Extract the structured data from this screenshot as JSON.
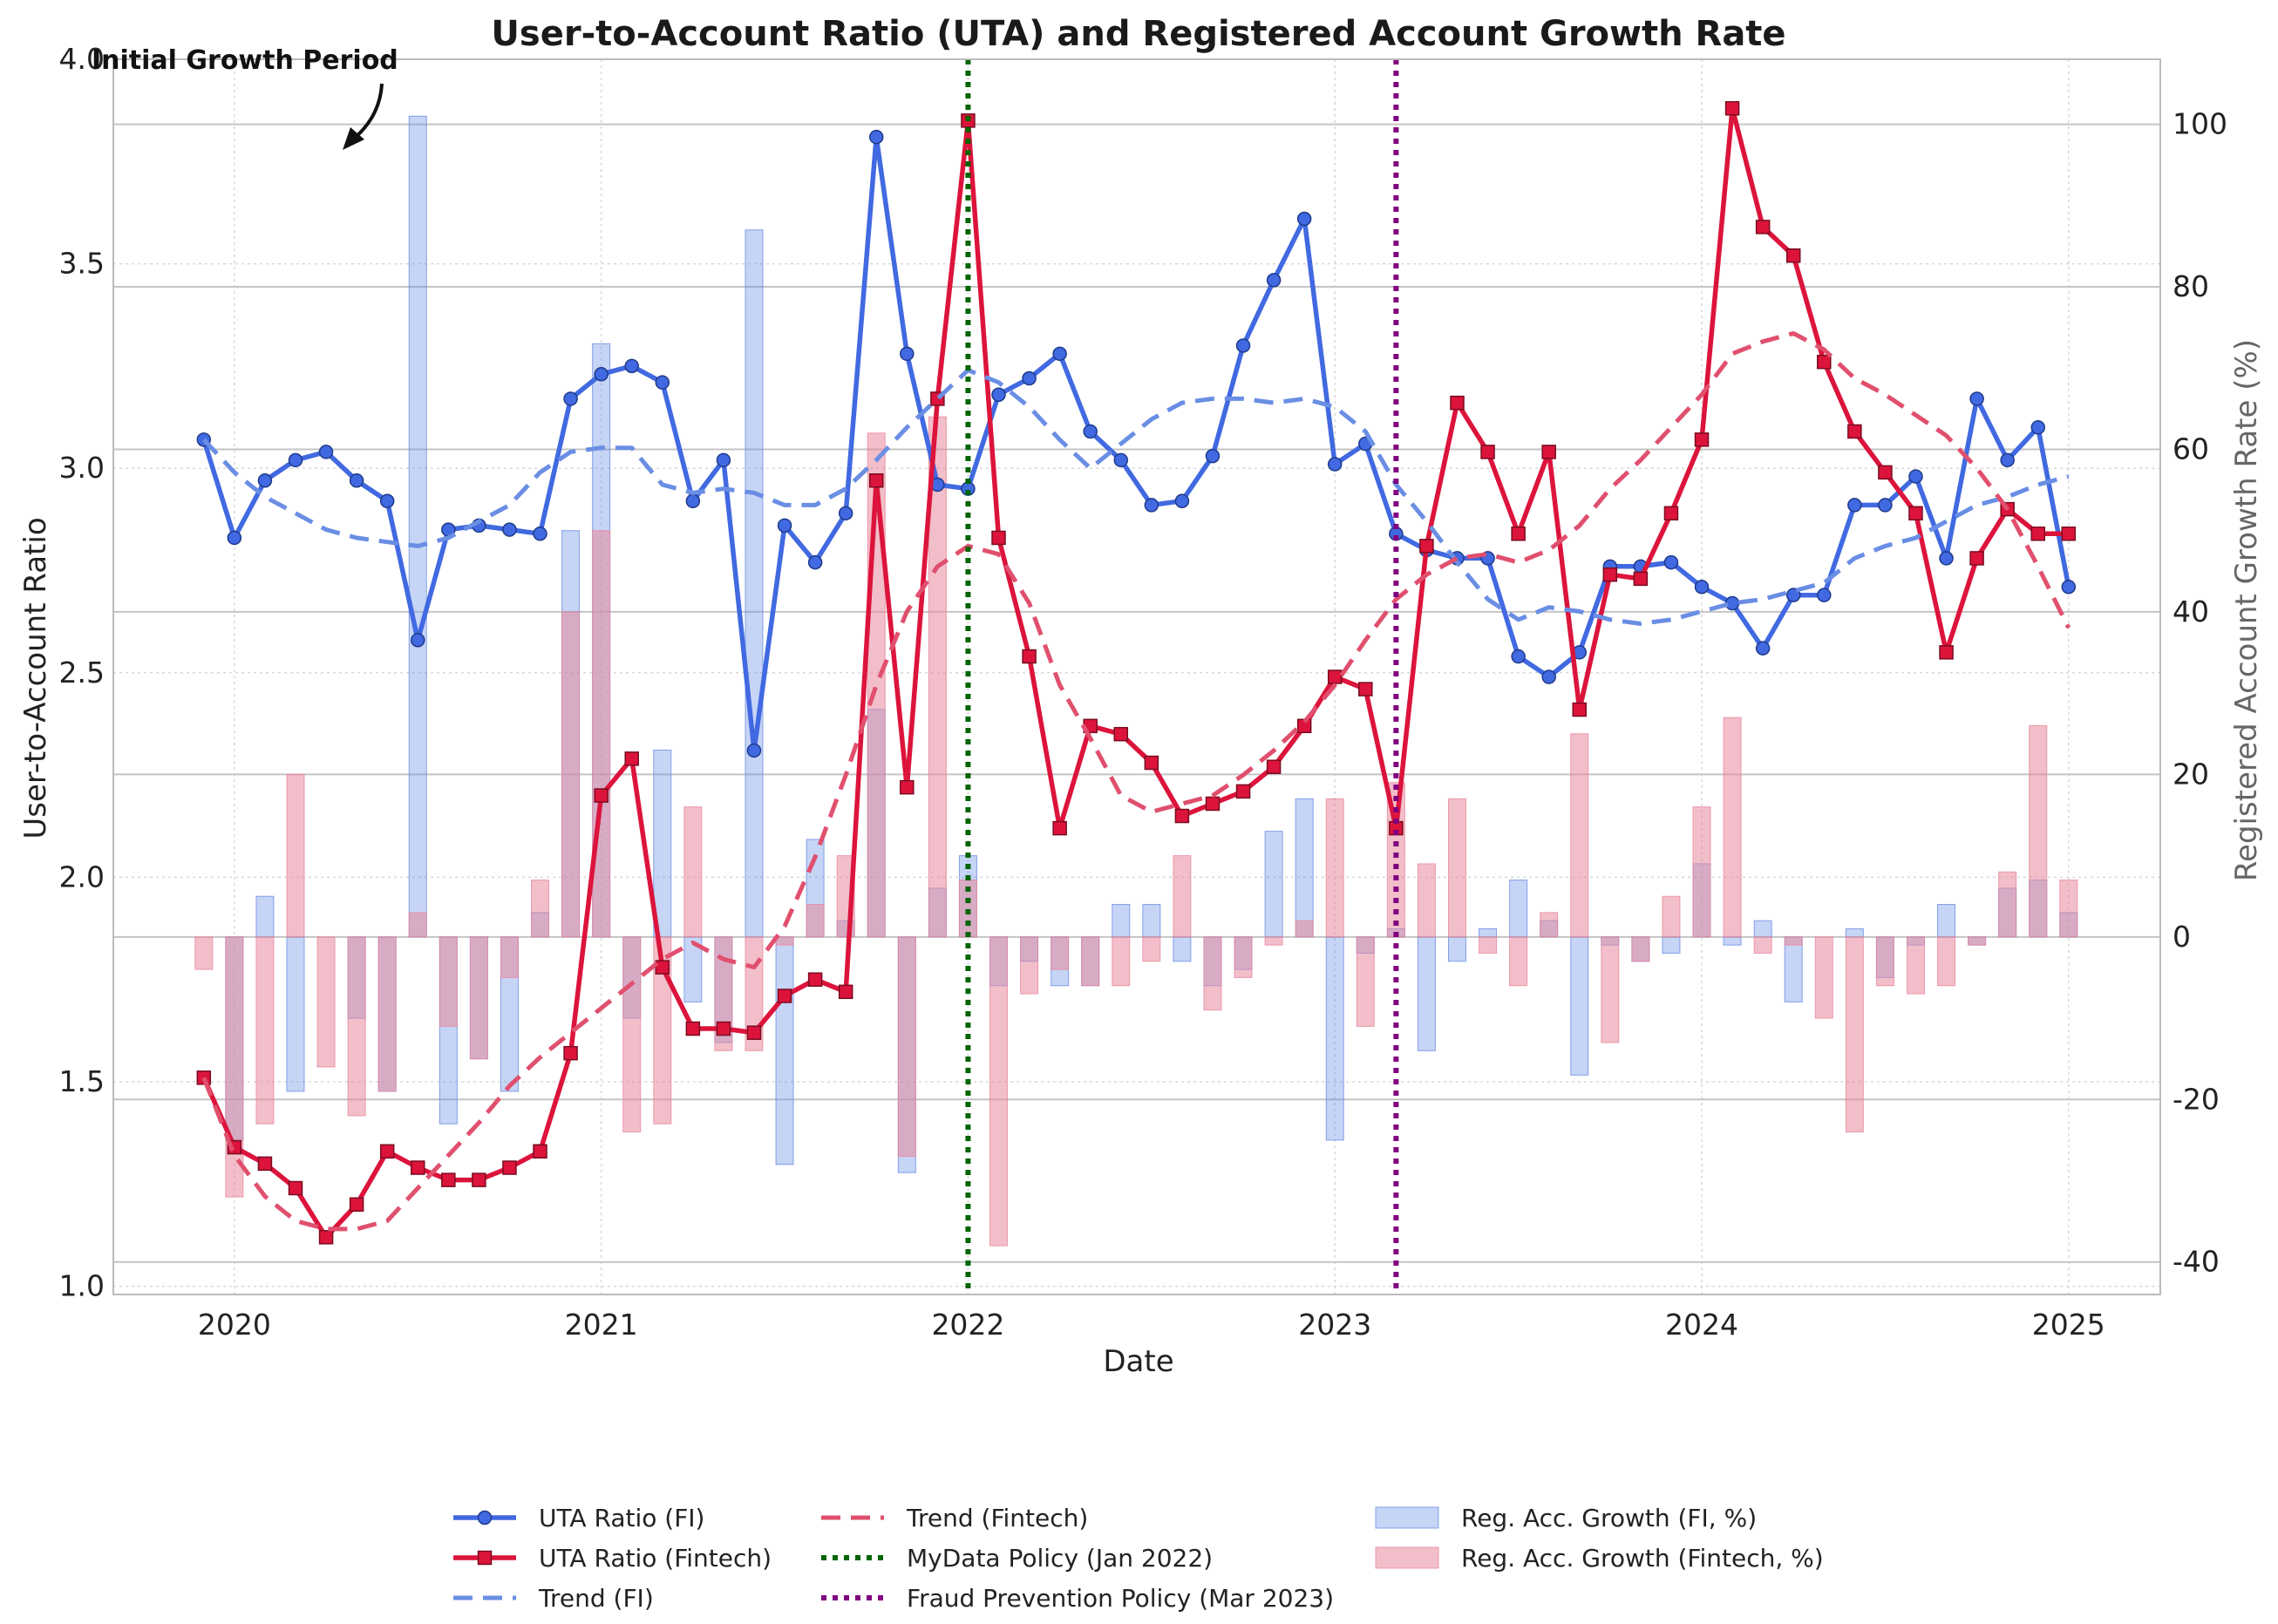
{
  "chart_data": {
    "type": "line",
    "title": "User-to-Account Ratio (UTA) and Registered Account Growth Rate",
    "xlabel": "Date",
    "ylabel": "User-to-Account Ratio",
    "y2label": "Registered Account Growth Rate (%)",
    "xlim": [
      2019.67,
      2025.25
    ],
    "ylim": [
      0.98,
      4.0
    ],
    "y2lim": [
      -44,
      108
    ],
    "x_ticks": [
      "2020",
      "2021",
      "2022",
      "2023",
      "2024",
      "2025"
    ],
    "y_ticks": [
      "1.0",
      "1.5",
      "2.0",
      "2.5",
      "3.0",
      "3.5",
      "4.0"
    ],
    "y2_ticks": [
      "-40",
      "-20",
      "0",
      "20",
      "40",
      "60",
      "80",
      "100"
    ],
    "months": [
      "2019-12",
      "2020-01",
      "2020-02",
      "2020-03",
      "2020-04",
      "2020-05",
      "2020-06",
      "2020-07",
      "2020-08",
      "2020-09",
      "2020-10",
      "2020-11",
      "2020-12",
      "2021-01",
      "2021-02",
      "2021-03",
      "2021-04",
      "2021-05",
      "2021-06",
      "2021-07",
      "2021-08",
      "2021-09",
      "2021-10",
      "2021-11",
      "2021-12",
      "2022-01",
      "2022-02",
      "2022-03",
      "2022-04",
      "2022-05",
      "2022-06",
      "2022-07",
      "2022-08",
      "2022-09",
      "2022-10",
      "2022-11",
      "2022-12",
      "2023-01",
      "2023-02",
      "2023-03",
      "2023-04",
      "2023-05",
      "2023-06",
      "2023-07",
      "2023-08",
      "2023-09",
      "2023-10",
      "2023-11",
      "2023-12",
      "2024-01",
      "2024-02",
      "2024-03",
      "2024-04",
      "2024-05",
      "2024-06",
      "2024-07",
      "2024-08",
      "2024-09",
      "2024-10",
      "2024-11",
      "2024-12",
      "2025-01"
    ],
    "series": [
      {
        "name": "UTA Ratio (FI)",
        "axis": "left",
        "style": "solid-circle",
        "color": "#4169e1",
        "values": [
          3.07,
          2.83,
          2.97,
          3.02,
          3.04,
          2.97,
          2.92,
          2.58,
          2.85,
          2.86,
          2.85,
          2.84,
          3.17,
          3.23,
          3.25,
          3.21,
          2.92,
          3.02,
          2.31,
          2.86,
          2.77,
          2.89,
          3.81,
          3.28,
          2.96,
          2.95,
          3.18,
          3.22,
          3.28,
          3.09,
          3.02,
          2.91,
          2.92,
          3.03,
          3.3,
          3.46,
          3.61,
          3.01,
          3.06,
          2.84,
          2.8,
          2.78,
          2.78,
          2.54,
          2.49,
          2.55,
          2.76,
          2.76,
          2.77,
          2.71,
          2.67,
          2.56,
          2.69,
          2.69,
          2.91,
          2.91,
          2.98,
          2.78,
          3.17,
          3.02,
          3.1,
          2.71
        ]
      },
      {
        "name": "UTA Ratio (Fintech)",
        "axis": "left",
        "style": "solid-square",
        "color": "#dc143c",
        "values": [
          1.51,
          1.34,
          1.3,
          1.24,
          1.12,
          1.2,
          1.33,
          1.29,
          1.26,
          1.26,
          1.29,
          1.33,
          1.57,
          2.2,
          2.29,
          1.78,
          1.63,
          1.63,
          1.62,
          1.71,
          1.75,
          1.72,
          2.97,
          2.22,
          3.17,
          3.85,
          2.83,
          2.54,
          2.12,
          2.37,
          2.35,
          2.28,
          2.15,
          2.18,
          2.21,
          2.27,
          2.37,
          2.49,
          2.46,
          2.12,
          2.81,
          3.16,
          3.04,
          2.84,
          3.04,
          2.41,
          2.74,
          2.73,
          2.89,
          3.07,
          3.88,
          3.59,
          3.52,
          3.26,
          3.09,
          2.99,
          2.89,
          2.55,
          2.78,
          2.9,
          2.84,
          2.84
        ]
      },
      {
        "name": "Trend (FI)",
        "axis": "left",
        "style": "dashed",
        "color": "#6a8ee4",
        "values": [
          3.07,
          2.99,
          2.93,
          2.89,
          2.85,
          2.83,
          2.82,
          2.81,
          2.83,
          2.87,
          2.91,
          2.99,
          3.04,
          3.05,
          3.05,
          2.96,
          2.94,
          2.95,
          2.94,
          2.91,
          2.91,
          2.95,
          3.02,
          3.1,
          3.17,
          3.24,
          3.21,
          3.15,
          3.07,
          3.0,
          3.06,
          3.12,
          3.16,
          3.17,
          3.17,
          3.16,
          3.17,
          3.15,
          3.09,
          2.96,
          2.87,
          2.77,
          2.68,
          2.63,
          2.66,
          2.65,
          2.63,
          2.62,
          2.63,
          2.65,
          2.67,
          2.68,
          2.7,
          2.72,
          2.78,
          2.81,
          2.83,
          2.87,
          2.91,
          2.93,
          2.96,
          2.98
        ]
      },
      {
        "name": "Trend (Fintech)",
        "axis": "left",
        "style": "dashed",
        "color": "#e0506e",
        "values": [
          1.51,
          1.32,
          1.22,
          1.16,
          1.14,
          1.14,
          1.16,
          1.24,
          1.32,
          1.4,
          1.49,
          1.56,
          1.62,
          1.68,
          1.74,
          1.8,
          1.84,
          1.8,
          1.78,
          1.88,
          2.05,
          2.25,
          2.47,
          2.65,
          2.76,
          2.81,
          2.79,
          2.67,
          2.47,
          2.34,
          2.2,
          2.16,
          2.18,
          2.2,
          2.25,
          2.31,
          2.38,
          2.47,
          2.58,
          2.68,
          2.74,
          2.78,
          2.79,
          2.77,
          2.8,
          2.86,
          2.95,
          3.02,
          3.1,
          3.18,
          3.28,
          3.31,
          3.33,
          3.29,
          3.22,
          3.18,
          3.13,
          3.08,
          3.0,
          2.9,
          2.76,
          2.61
        ]
      },
      {
        "name": "Reg. Acc. Growth (FI, %)",
        "axis": "right",
        "style": "bar",
        "color": "#6a8ee4",
        "values": [
          0,
          -25,
          5,
          -19,
          0,
          -10,
          -19,
          101,
          -23,
          -15,
          -19,
          3,
          50,
          73,
          -10,
          23,
          -8,
          -13,
          87,
          -28,
          12,
          2,
          28,
          -29,
          6,
          10,
          -6,
          -3,
          -6,
          -6,
          4,
          4,
          -3,
          -6,
          -4,
          13,
          17,
          -25,
          -2,
          1,
          -14,
          -3,
          1,
          7,
          2,
          -17,
          -1,
          -3,
          -2,
          9,
          -1,
          2,
          -8,
          0,
          1,
          -5,
          -1,
          4,
          -1,
          6,
          7,
          3
        ]
      },
      {
        "name": "Reg. Acc. Growth (Fintech, %)",
        "axis": "right",
        "style": "bar",
        "color": "#e8889c",
        "values": [
          -4,
          -32,
          -23,
          20,
          -16,
          -22,
          -19,
          3,
          -11,
          -15,
          -5,
          7,
          40,
          50,
          -24,
          -23,
          16,
          -14,
          -14,
          -1,
          4,
          10,
          62,
          -27,
          64,
          7,
          -38,
          -7,
          -4,
          -6,
          -6,
          -3,
          10,
          -9,
          -5,
          -1,
          2,
          17,
          -11,
          19,
          9,
          17,
          -2,
          -6,
          3,
          25,
          -13,
          -3,
          5,
          16,
          27,
          -2,
          -1,
          -10,
          -24,
          -6,
          -7,
          -6,
          -1,
          8,
          26,
          7
        ]
      }
    ],
    "vlines": [
      {
        "name": "MyData Policy (Jan 2022)",
        "date": "2022-01",
        "color": "#006400"
      },
      {
        "name": "Fraud Prevention Policy (Mar 2023)",
        "date": "2023-03",
        "color": "#800080"
      }
    ],
    "annotations": [
      {
        "text": "Initial Growth Period",
        "target": "2020-04"
      }
    ],
    "legend_position": "bottom-center",
    "grid": true
  }
}
